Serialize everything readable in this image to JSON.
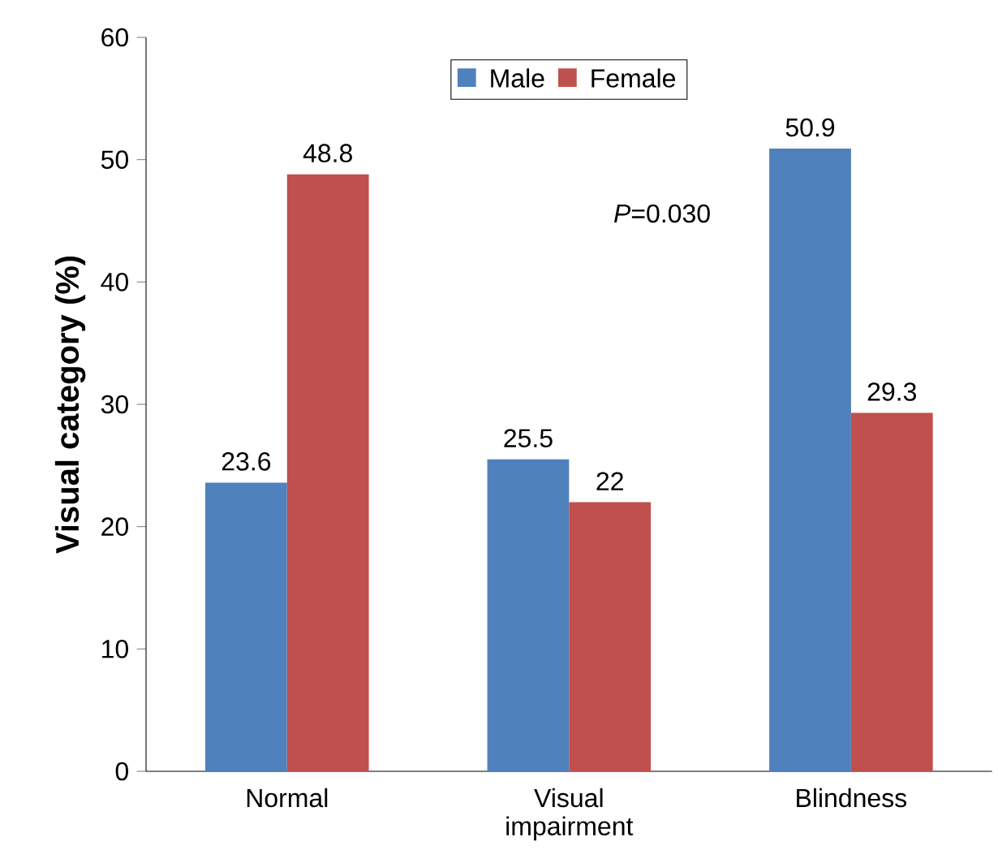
{
  "chart_data": {
    "type": "bar",
    "ylabel": "Visual category (%)",
    "categories": [
      "Normal",
      "Visual impairment",
      "Blindness"
    ],
    "series": [
      {
        "name": "Male",
        "color": "#4f81bd",
        "values": [
          23.6,
          25.5,
          50.9
        ]
      },
      {
        "name": "Female",
        "color": "#c0504d",
        "values": [
          48.8,
          22,
          29.3
        ]
      }
    ],
    "ylim": [
      0,
      60
    ],
    "yticks": [
      0,
      10,
      20,
      30,
      40,
      50,
      60
    ],
    "data_labels": true,
    "legend": "top",
    "annotations": [
      "*P*=0.030"
    ]
  }
}
